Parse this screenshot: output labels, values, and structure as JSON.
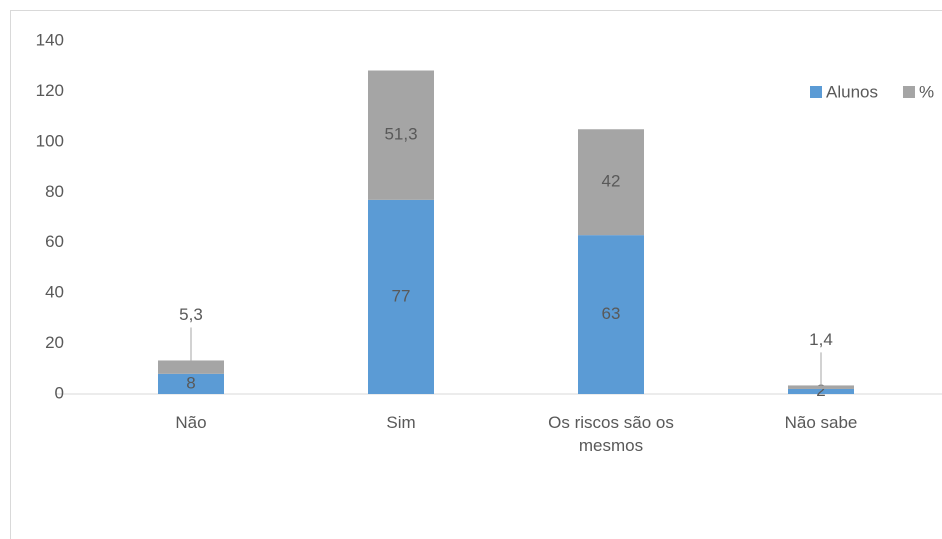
{
  "chart_data": {
    "type": "stacked-bar",
    "categories": [
      "Não",
      "Sim",
      "Os riscos são os mesmos",
      "Não sabe"
    ],
    "series": [
      {
        "name": "Alunos",
        "color": "#5b9bd5",
        "values": [
          8,
          77,
          63,
          2
        ]
      },
      {
        "name": "%",
        "color": "#a5a5a5",
        "values": [
          5.3,
          51.3,
          42,
          1.4
        ],
        "value_labels": [
          "5,3",
          "51,3",
          "42",
          "1,4"
        ]
      }
    ],
    "ylim": [
      0,
      140
    ],
    "yticks": [
      0,
      20,
      40,
      60,
      80,
      100,
      120,
      140
    ],
    "grid": false,
    "legend": "top-right"
  }
}
